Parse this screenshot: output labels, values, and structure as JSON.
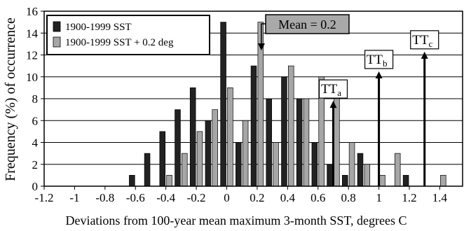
{
  "chart_data": {
    "type": "bar",
    "xlabel": "Deviations from 100-year mean maximum 3-month SST, degrees C",
    "ylabel": "Frequency (%) of occurrence",
    "xlim": [
      -1.2,
      1.55
    ],
    "ylim": [
      0,
      16
    ],
    "bin_width": 0.1,
    "x_ticks": [
      -1.2,
      -1.0,
      -0.8,
      -0.6,
      -0.4,
      -0.2,
      0,
      0.2,
      0.4,
      0.6,
      0.8,
      1.0,
      1.2,
      1.4
    ],
    "x_tick_labels": [
      "-1.2",
      "-1",
      "-0.8",
      "-0.6",
      "-0.4",
      "-0.2",
      "0",
      "0.2",
      "0.4",
      "0.6",
      "0.8",
      "1",
      "1.2",
      "1.4"
    ],
    "y_ticks": [
      0,
      2,
      4,
      6,
      8,
      10,
      12,
      14,
      16
    ],
    "y_tick_labels": [
      "0",
      "2",
      "4",
      "6",
      "8",
      "10",
      "12",
      "14",
      "16"
    ],
    "grid": "horizontal",
    "legend_position": "top-left",
    "series": [
      {
        "name": "1900-1999 SST",
        "color": "#222222",
        "x": [
          -0.6,
          -0.5,
          -0.4,
          -0.3,
          -0.2,
          -0.1,
          0.0,
          0.1,
          0.2,
          0.3,
          0.4,
          0.5,
          0.6,
          0.7,
          0.8,
          0.9,
          1.2
        ],
        "values": [
          1,
          3,
          5,
          7,
          9,
          6,
          15,
          4,
          11,
          8,
          10,
          8,
          4,
          2,
          1,
          3,
          1
        ]
      },
      {
        "name": "1900-1999 SST + 0.2 deg",
        "color": "#a6a6a6",
        "x": [
          -0.4,
          -0.3,
          -0.2,
          -0.1,
          0.0,
          0.1,
          0.2,
          0.3,
          0.4,
          0.5,
          0.6,
          0.7,
          0.8,
          0.9,
          1.0,
          1.1,
          1.4
        ],
        "values": [
          1,
          3,
          5,
          7,
          9,
          6,
          15,
          4,
          11,
          8,
          10,
          8,
          4,
          2,
          1,
          3,
          1
        ]
      }
    ],
    "annotations": {
      "mean_label": "Mean = 0.2",
      "mean_arrow_x": 0.2,
      "thresholds": [
        {
          "label": "TT",
          "sub": "a",
          "x": 0.7,
          "arrow_top": 7.8
        },
        {
          "label": "TT",
          "sub": "b",
          "x": 1.0,
          "arrow_top": 10.5
        },
        {
          "label": "TT",
          "sub": "c",
          "x": 1.3,
          "arrow_top": 12.3
        }
      ]
    }
  }
}
